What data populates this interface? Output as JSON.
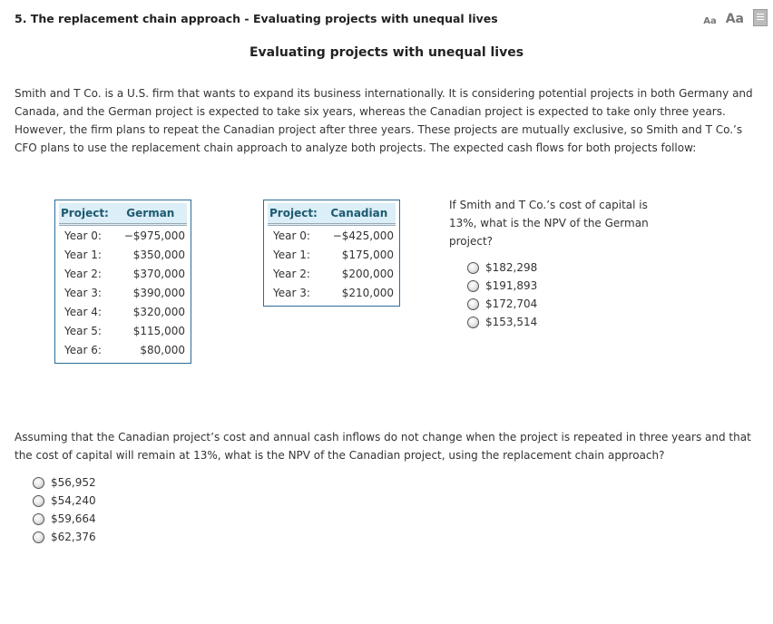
{
  "header": {
    "title": "5.  The replacement chain approach - Evaluating projects with unequal lives",
    "font_small": "Aa",
    "font_large": "Aa",
    "print_icon": "print-icon"
  },
  "subtitle": "Evaluating projects with unequal lives",
  "intro": "Smith and T Co. is a U.S. firm that wants to expand its business internationally. It is considering potential projects in both Germany and Canada, and the German project is expected to take six years, whereas the Canadian project is expected to take only three years. However, the firm plans to repeat the Canadian project after three years. These projects are mutually exclusive, so Smith and T Co.’s CFO plans to use the replacement chain approach to analyze both projects. The expected cash flows for both projects follow:",
  "german": {
    "header": [
      "Project:",
      "German"
    ],
    "rows": [
      [
        "Year 0:",
        "−$975,000"
      ],
      [
        "Year 1:",
        "$350,000"
      ],
      [
        "Year 2:",
        "$370,000"
      ],
      [
        "Year 3:",
        "$390,000"
      ],
      [
        "Year 4:",
        "$320,000"
      ],
      [
        "Year 5:",
        "$115,000"
      ],
      [
        "Year 6:",
        "$80,000"
      ]
    ]
  },
  "canadian": {
    "header": [
      "Project:",
      "Canadian"
    ],
    "rows": [
      [
        "Year 0:",
        "−$425,000"
      ],
      [
        "Year 1:",
        "$175,000"
      ],
      [
        "Year 2:",
        "$200,000"
      ],
      [
        "Year 3:",
        "$210,000"
      ]
    ]
  },
  "q1": {
    "text": "If Smith and T Co.’s cost of capital is 13%, what is the NPV of the German project?",
    "options": [
      "$182,298",
      "$191,893",
      "$172,704",
      "$153,514"
    ]
  },
  "q2": {
    "text": "Assuming that the Canadian project’s cost and annual cash inflows do not change when the project is repeated in three years and that the cost of capital will remain at 13%, what is the NPV of the Canadian project, using the replacement chain approach?",
    "options": [
      "$56,952",
      "$54,240",
      "$59,664",
      "$62,376"
    ]
  }
}
